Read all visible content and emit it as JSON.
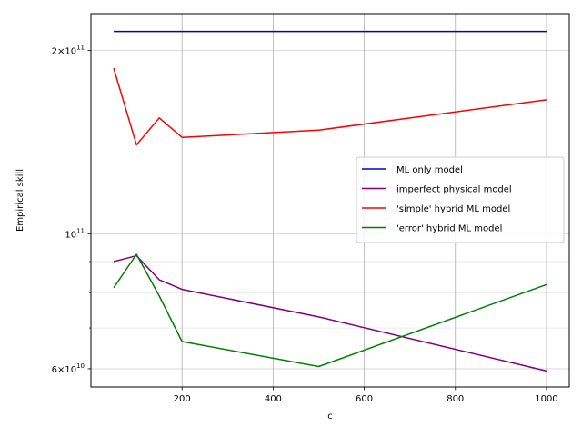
{
  "chart_data": {
    "type": "line",
    "xlabel": "c",
    "ylabel": "Empirical skill",
    "xlim": [
      0,
      1050
    ],
    "ylim": [
      56000000000,
      230000000000
    ],
    "yscale": "log",
    "grid": true,
    "legend_position": "center-right",
    "xticks": [
      {
        "value": 200,
        "label": "200"
      },
      {
        "value": 400,
        "label": "400"
      },
      {
        "value": 600,
        "label": "600"
      },
      {
        "value": 800,
        "label": "800"
      },
      {
        "value": 1000,
        "label": "1000"
      }
    ],
    "yticks": [
      {
        "value": 60000000000,
        "base": "6",
        "mult": "×",
        "exp_base": "10",
        "exp": "10"
      },
      {
        "value": 100000000000,
        "base": "",
        "mult": "",
        "exp_base": "10",
        "exp": "11"
      },
      {
        "value": 200000000000,
        "base": "2",
        "mult": "×",
        "exp_base": "10",
        "exp": "11"
      }
    ],
    "series": [
      {
        "name": "ML only model",
        "color": "#0000cc",
        "x": [
          50,
          100,
          150,
          200,
          500,
          1000
        ],
        "values": [
          215000000000,
          215000000000,
          215000000000,
          215000000000,
          215000000000,
          215000000000
        ]
      },
      {
        "name": "imperfect physical model",
        "color": "#800080",
        "x": [
          50,
          100,
          150,
          200,
          500,
          1000
        ],
        "values": [
          90000000000,
          92000000000,
          84000000000,
          81000000000,
          73000000000,
          59500000000
        ]
      },
      {
        "name": "'simple' hybrid ML model",
        "color": "#ff0000",
        "x": [
          50,
          100,
          150,
          200,
          500,
          1000
        ],
        "values": [
          187000000000,
          140000000000,
          155000000000,
          144000000000,
          148000000000,
          166000000000
        ]
      },
      {
        "name": "'error' hybrid ML model",
        "color": "#008000",
        "x": [
          50,
          100,
          150,
          200,
          500,
          1000
        ],
        "values": [
          81500000000,
          92500000000,
          79000000000,
          66500000000,
          60500000000,
          82500000000
        ]
      }
    ]
  }
}
